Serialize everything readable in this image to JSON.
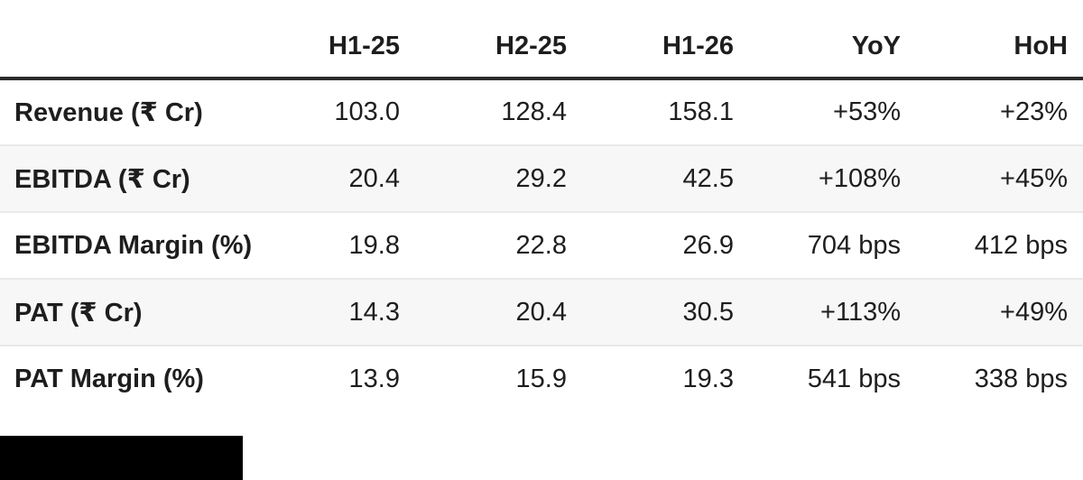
{
  "chart_data": {
    "type": "table",
    "columns": [
      "",
      "H1-25",
      "H2-25",
      "H1-26",
      "YoY",
      "HoH"
    ],
    "rows": [
      {
        "label": "Revenue (₹ Cr)",
        "values": [
          "103.0",
          "128.4",
          "158.1",
          "+53%",
          "+23%"
        ]
      },
      {
        "label": "EBITDA (₹ Cr)",
        "values": [
          "20.4",
          "29.2",
          "42.5",
          "+108%",
          "+45%"
        ]
      },
      {
        "label": "EBITDA Margin (%)",
        "values": [
          "19.8",
          "22.8",
          "26.9",
          "704 bps",
          "412 bps"
        ]
      },
      {
        "label": "PAT (₹ Cr)",
        "values": [
          "14.3",
          "20.4",
          "30.5",
          "+113%",
          "+49%"
        ]
      },
      {
        "label": "PAT Margin (%)",
        "values": [
          "13.9",
          "15.9",
          "19.3",
          "541 bps",
          "338 bps"
        ]
      }
    ],
    "layout": {
      "striped_rows": [
        1,
        3
      ],
      "header_rule": true,
      "grid": "horizontal-only"
    }
  },
  "colors": {
    "text": "#1e1e1e",
    "header_rule": "#2c2c2c",
    "row_stripe": "#f7f7f7",
    "row_divider": "#e9e9e9",
    "redaction": "#000000",
    "background": "#ffffff"
  }
}
